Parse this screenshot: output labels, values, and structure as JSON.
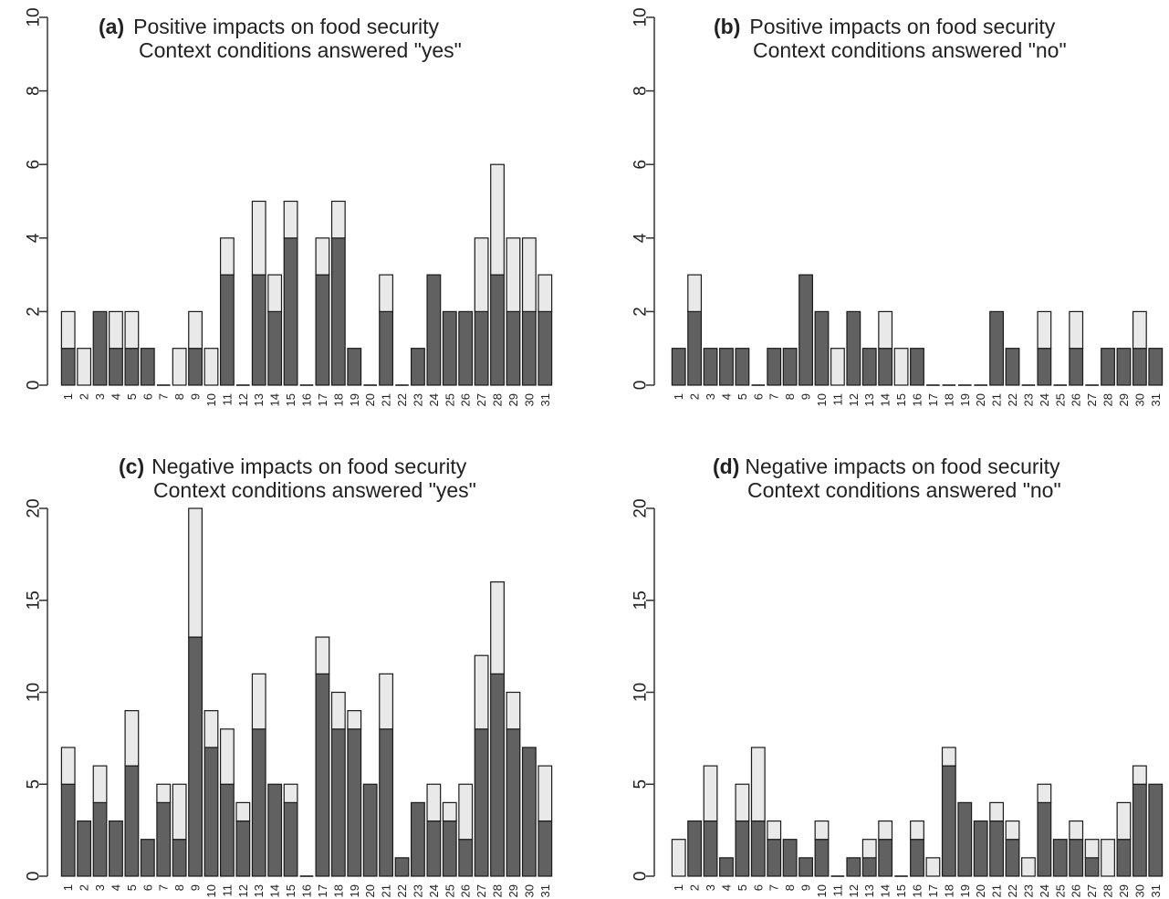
{
  "colors": {
    "dark": "#616161",
    "light": "#e9e9e9",
    "stroke": "#1a1a1a",
    "axis": "#333333"
  },
  "chart_data": [
    {
      "id": "a",
      "type": "bar",
      "stacked": true,
      "panel_tag": "(a)",
      "title_line1": "Positive impacts on food security",
      "title_line2": "Context conditions answered \"yes\"",
      "categories": [
        "1",
        "2",
        "3",
        "4",
        "5",
        "6",
        "7",
        "8",
        "9",
        "10",
        "11",
        "12",
        "13",
        "14",
        "15",
        "16",
        "17",
        "18",
        "19",
        "20",
        "21",
        "22",
        "23",
        "24",
        "25",
        "26",
        "27",
        "28",
        "29",
        "30",
        "31"
      ],
      "ylim": [
        0,
        10
      ],
      "yticks": [
        0,
        2,
        4,
        6,
        8,
        10
      ],
      "series": [
        {
          "values": [
            1,
            0,
            2,
            1,
            1,
            1,
            0,
            0,
            1,
            0,
            3,
            0,
            3,
            2,
            4,
            0,
            3,
            4,
            1,
            0,
            2,
            0,
            1,
            3,
            2,
            2,
            2,
            3,
            2,
            2,
            2
          ]
        },
        {
          "values": [
            1,
            1,
            0,
            1,
            1,
            0,
            0,
            1,
            1,
            1,
            1,
            0,
            2,
            1,
            1,
            0,
            1,
            1,
            0,
            0,
            1,
            0,
            0,
            0,
            0,
            0,
            2,
            3,
            2,
            2,
            1
          ]
        }
      ]
    },
    {
      "id": "b",
      "type": "bar",
      "stacked": true,
      "panel_tag": "(b)",
      "title_line1": "Positive impacts on food security",
      "title_line2": "Context conditions answered \"no\"",
      "categories": [
        "1",
        "2",
        "3",
        "4",
        "5",
        "6",
        "7",
        "8",
        "9",
        "10",
        "11",
        "12",
        "13",
        "14",
        "15",
        "16",
        "17",
        "18",
        "19",
        "20",
        "21",
        "22",
        "23",
        "24",
        "25",
        "26",
        "27",
        "28",
        "29",
        "30",
        "31"
      ],
      "ylim": [
        0,
        10
      ],
      "yticks": [
        0,
        2,
        4,
        6,
        8,
        10
      ],
      "series": [
        {
          "values": [
            1,
            2,
            1,
            1,
            1,
            0,
            1,
            1,
            3,
            2,
            0,
            2,
            1,
            1,
            0,
            1,
            0,
            0,
            0,
            0,
            2,
            1,
            0,
            1,
            0,
            1,
            0,
            1,
            1,
            1,
            1
          ]
        },
        {
          "values": [
            0,
            1,
            0,
            0,
            0,
            0,
            0,
            0,
            0,
            0,
            1,
            0,
            0,
            1,
            1,
            0,
            0,
            0,
            0,
            0,
            0,
            0,
            0,
            1,
            0,
            1,
            0,
            0,
            0,
            1,
            0
          ]
        }
      ]
    },
    {
      "id": "c",
      "type": "bar",
      "stacked": true,
      "panel_tag": "(c)",
      "title_line1": "Negative impacts on food security",
      "title_line2": "Context conditions answered \"yes\"",
      "categories": [
        "1",
        "2",
        "3",
        "4",
        "5",
        "6",
        "7",
        "8",
        "9",
        "10",
        "11",
        "12",
        "13",
        "14",
        "15",
        "16",
        "17",
        "18",
        "19",
        "20",
        "21",
        "22",
        "23",
        "24",
        "25",
        "26",
        "27",
        "28",
        "29",
        "30",
        "31"
      ],
      "ylim": [
        0,
        20
      ],
      "yticks": [
        0,
        5,
        10,
        15,
        20
      ],
      "series": [
        {
          "values": [
            5,
            3,
            4,
            3,
            6,
            2,
            4,
            2,
            13,
            7,
            5,
            3,
            8,
            5,
            4,
            0,
            11,
            8,
            8,
            5,
            8,
            1,
            4,
            3,
            3,
            2,
            8,
            11,
            8,
            7,
            3
          ]
        },
        {
          "values": [
            2,
            0,
            2,
            0,
            3,
            0,
            1,
            3,
            7,
            2,
            3,
            1,
            3,
            0,
            1,
            0,
            2,
            2,
            1,
            0,
            3,
            0,
            0,
            2,
            1,
            3,
            4,
            5,
            2,
            0,
            3
          ]
        }
      ]
    },
    {
      "id": "d",
      "type": "bar",
      "stacked": true,
      "panel_tag": "(d)",
      "title_line1": "Negative impacts on food security",
      "title_line2": "Context conditions answered \"no\"",
      "categories": [
        "1",
        "2",
        "3",
        "4",
        "5",
        "6",
        "7",
        "8",
        "9",
        "10",
        "11",
        "12",
        "13",
        "14",
        "15",
        "16",
        "17",
        "18",
        "19",
        "20",
        "21",
        "22",
        "23",
        "24",
        "25",
        "26",
        "27",
        "28",
        "29",
        "30",
        "31"
      ],
      "ylim": [
        0,
        20
      ],
      "yticks": [
        0,
        5,
        10,
        15,
        20
      ],
      "series": [
        {
          "values": [
            0,
            3,
            3,
            1,
            3,
            3,
            2,
            2,
            1,
            2,
            0,
            1,
            1,
            2,
            0,
            2,
            0,
            6,
            4,
            3,
            3,
            2,
            0,
            4,
            2,
            2,
            1,
            0,
            2,
            5,
            5
          ]
        },
        {
          "values": [
            2,
            0,
            3,
            0,
            2,
            4,
            1,
            0,
            0,
            1,
            0,
            0,
            1,
            1,
            0,
            1,
            1,
            1,
            0,
            0,
            1,
            1,
            1,
            1,
            0,
            1,
            1,
            2,
            2,
            1,
            0
          ]
        }
      ]
    }
  ]
}
